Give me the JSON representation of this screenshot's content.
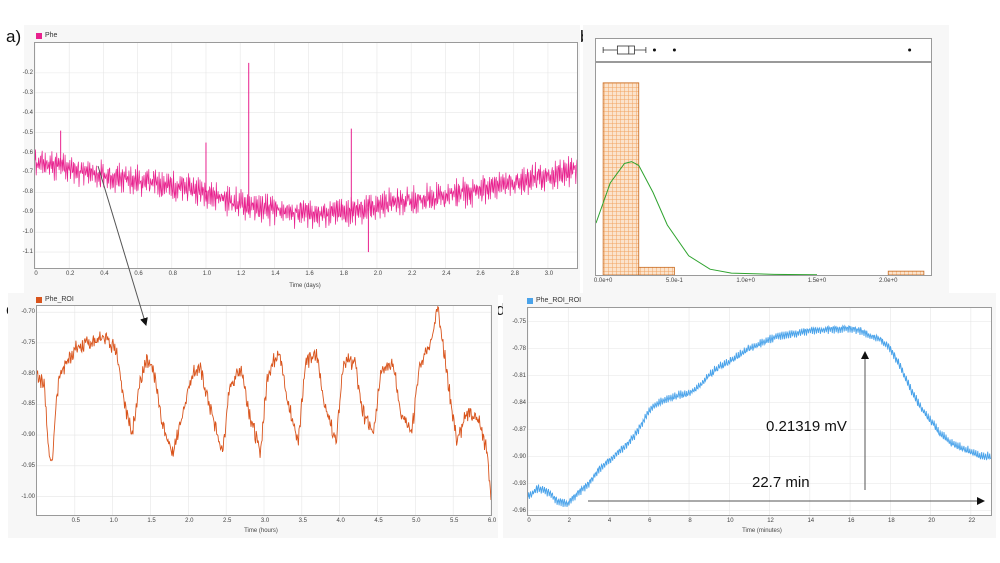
{
  "panel_labels": {
    "a": "a)",
    "b": "b)",
    "c": "c)",
    "d": "d)"
  },
  "colors": {
    "phe": "#e8218e",
    "phe_roi": "#d9541c",
    "phe_roi_roi": "#4aa3ea",
    "hist_fill": "#f2a35f",
    "fit": "#2ea32e",
    "arrow": "#555555"
  },
  "annotations": {
    "amplitude": "0.21319 mV",
    "duration": "22.7 min"
  },
  "chart_data": [
    {
      "id": "a",
      "type": "line",
      "legend": [
        "Phe"
      ],
      "xlabel": "Time (days)",
      "ylabel": "",
      "xlim": [
        0,
        3.17
      ],
      "ylim": [
        -1.18,
        -0.05
      ],
      "xticks": [
        "0",
        "0.2",
        "0.4",
        "0.6",
        "0.8",
        "1.0",
        "1.2",
        "1.4",
        "1.6",
        "1.8",
        "2.0",
        "2.2",
        "2.4",
        "2.6",
        "2.8",
        "3.0"
      ],
      "yticks": [
        "-0.2",
        "-0.3",
        "-0.4",
        "-0.5",
        "-0.6",
        "-0.7",
        "-0.8",
        "-0.9",
        "-1.0",
        "-1.1"
      ],
      "grid": true,
      "series": [
        {
          "name": "Phe",
          "x": [
            0,
            0.1,
            0.2,
            0.3,
            0.4,
            0.5,
            0.6,
            0.7,
            0.8,
            0.9,
            1.0,
            1.1,
            1.2,
            1.3,
            1.4,
            1.5,
            1.6,
            1.7,
            1.8,
            1.9,
            2.0,
            2.1,
            2.2,
            2.3,
            2.4,
            2.5,
            2.6,
            2.7,
            2.8,
            2.9,
            3.0,
            3.1,
            3.17
          ],
          "y": [
            -0.65,
            -0.66,
            -0.68,
            -0.7,
            -0.72,
            -0.73,
            -0.74,
            -0.75,
            -0.77,
            -0.78,
            -0.8,
            -0.83,
            -0.86,
            -0.88,
            -0.89,
            -0.9,
            -0.9,
            -0.91,
            -0.9,
            -0.89,
            -0.87,
            -0.85,
            -0.84,
            -0.83,
            -0.82,
            -0.8,
            -0.79,
            -0.77,
            -0.75,
            -0.73,
            -0.72,
            -0.7,
            -0.68
          ],
          "spikes": [
            {
              "x": 0.15,
              "y": -0.49
            },
            {
              "x": 1.0,
              "y": -0.55
            },
            {
              "x": 1.25,
              "y": -0.15
            },
            {
              "x": 1.85,
              "y": -0.48
            },
            {
              "x": 1.95,
              "y": -1.1
            }
          ]
        }
      ]
    },
    {
      "id": "b",
      "type": "bar",
      "legend": [],
      "xlabel": "",
      "ylabel": "",
      "xlim": [
        -0.05,
        2.3
      ],
      "xticks": [
        "0.0e+0",
        "5.0e-1",
        "1.0e+0",
        "1.5e+0",
        "2.0e+0"
      ],
      "bins": [
        {
          "x0": 0.0,
          "x1": 0.25,
          "count": 100
        },
        {
          "x0": 0.25,
          "x1": 0.5,
          "count": 4
        },
        {
          "x0": 2.0,
          "x1": 2.25,
          "count": 2
        }
      ],
      "fit_curve": {
        "x": [
          -0.05,
          0.05,
          0.15,
          0.2,
          0.25,
          0.35,
          0.45,
          0.6,
          0.75,
          0.9,
          1.2,
          1.5
        ],
        "y": [
          27,
          48,
          58,
          59,
          57,
          43,
          26,
          10,
          3,
          1,
          0.3,
          0.1
        ]
      },
      "boxplot": {
        "whisker_low": 0.0,
        "q1": 0.1,
        "median": 0.18,
        "q3": 0.22,
        "whisker_high": 0.3,
        "outliers": [
          0.36,
          0.5,
          2.15
        ]
      }
    },
    {
      "id": "c",
      "type": "line",
      "legend": [
        "Phe_ROI"
      ],
      "xlabel": "Time (hours)",
      "ylabel": "",
      "xlim": [
        0,
        6.0
      ],
      "ylim": [
        -1.03,
        -0.69
      ],
      "xticks": [
        "0.5",
        "1.0",
        "1.5",
        "2.0",
        "2.5",
        "3.0",
        "3.5",
        "4.0",
        "4.5",
        "5.0",
        "5.5",
        "6.0"
      ],
      "yticks": [
        "-0.70",
        "-0.75",
        "-0.80",
        "-0.85",
        "-0.90",
        "-0.95",
        "-1.00"
      ],
      "grid": true,
      "series": [
        {
          "name": "Phe_ROI",
          "x": [
            0,
            0.1,
            0.15,
            0.2,
            0.25,
            0.3,
            0.5,
            0.7,
            0.9,
            1.05,
            1.15,
            1.25,
            1.35,
            1.45,
            1.55,
            1.65,
            1.8,
            1.95,
            2.05,
            2.15,
            2.3,
            2.45,
            2.55,
            2.7,
            2.8,
            2.95,
            3.05,
            3.2,
            3.3,
            3.45,
            3.55,
            3.7,
            3.8,
            3.95,
            4.05,
            4.2,
            4.3,
            4.45,
            4.55,
            4.7,
            4.8,
            4.95,
            5.05,
            5.2,
            5.3,
            5.45,
            5.55,
            5.7,
            5.85,
            5.95,
            6.0
          ],
          "y": [
            -0.8,
            -0.82,
            -0.92,
            -0.95,
            -0.85,
            -0.8,
            -0.76,
            -0.75,
            -0.74,
            -0.76,
            -0.84,
            -0.9,
            -0.82,
            -0.78,
            -0.8,
            -0.88,
            -0.93,
            -0.85,
            -0.8,
            -0.79,
            -0.86,
            -0.93,
            -0.82,
            -0.79,
            -0.86,
            -0.93,
            -0.8,
            -0.76,
            -0.84,
            -0.91,
            -0.78,
            -0.77,
            -0.85,
            -0.91,
            -0.78,
            -0.78,
            -0.86,
            -0.9,
            -0.79,
            -0.78,
            -0.86,
            -0.9,
            -0.79,
            -0.75,
            -0.69,
            -0.83,
            -0.91,
            -0.86,
            -0.88,
            -0.93,
            -1.0
          ]
        }
      ]
    },
    {
      "id": "d",
      "type": "line",
      "legend": [
        "Phe_ROI_ROI"
      ],
      "xlabel": "Time (minutes)",
      "ylabel": "",
      "xlim": [
        0,
        23
      ],
      "ylim": [
        -0.965,
        -0.735
      ],
      "xticks": [
        "0",
        "2",
        "4",
        "6",
        "8",
        "10",
        "12",
        "14",
        "16",
        "18",
        "20",
        "22"
      ],
      "yticks": [
        "-0.75",
        "-0.78",
        "-0.81",
        "-0.84",
        "-0.87",
        "-0.90",
        "-0.93",
        "-0.96"
      ],
      "grid": true,
      "series": [
        {
          "name": "Phe_ROI_ROI",
          "x": [
            0,
            0.5,
            1,
            1.5,
            2,
            2.5,
            3,
            3.5,
            4,
            4.5,
            5,
            5.5,
            6,
            6.5,
            7,
            7.5,
            8,
            8.5,
            9,
            9.5,
            10,
            10.5,
            11,
            11.5,
            12,
            12.5,
            13,
            13.5,
            14,
            14.5,
            15,
            15.5,
            16,
            16.5,
            17,
            17.5,
            18,
            18.5,
            19,
            19.5,
            20,
            20.5,
            21,
            21.5,
            22,
            22.5,
            23
          ],
          "y": [
            -0.945,
            -0.935,
            -0.94,
            -0.95,
            -0.952,
            -0.94,
            -0.93,
            -0.915,
            -0.905,
            -0.895,
            -0.885,
            -0.87,
            -0.85,
            -0.84,
            -0.836,
            -0.832,
            -0.83,
            -0.822,
            -0.81,
            -0.8,
            -0.795,
            -0.787,
            -0.78,
            -0.775,
            -0.77,
            -0.766,
            -0.764,
            -0.762,
            -0.76,
            -0.76,
            -0.758,
            -0.758,
            -0.758,
            -0.76,
            -0.766,
            -0.77,
            -0.78,
            -0.8,
            -0.825,
            -0.845,
            -0.86,
            -0.875,
            -0.885,
            -0.89,
            -0.895,
            -0.9,
            -0.9
          ]
        }
      ]
    }
  ]
}
